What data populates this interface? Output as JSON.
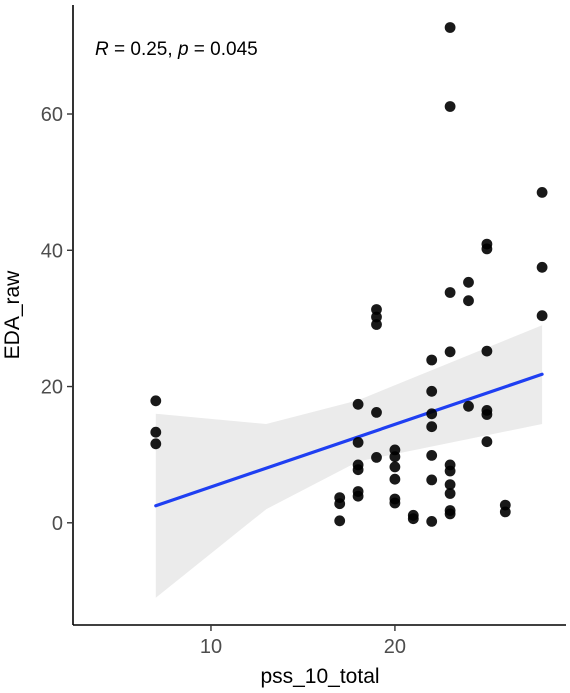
{
  "chart_data": {
    "type": "scatter",
    "xlabel": "pss_10_total",
    "ylabel": "EDA_raw",
    "annotation": {
      "r_symbol": "R",
      "r_text": " = 0.25, ",
      "p_symbol": "p",
      "p_text": " = 0.045"
    },
    "xlim": [
      2.5,
      29.3
    ],
    "ylim": [
      -15,
      76
    ],
    "x_ticks": [
      10,
      20
    ],
    "x_tick_labels": [
      "10",
      "20"
    ],
    "y_ticks": [
      0,
      20,
      40,
      60
    ],
    "y_tick_labels": [
      "0",
      "20",
      "40",
      "60"
    ],
    "grid": false,
    "legend": "none",
    "points": [
      {
        "x": 7,
        "y": 17.9
      },
      {
        "x": 7,
        "y": 13.3
      },
      {
        "x": 7,
        "y": 11.6
      },
      {
        "x": 17,
        "y": 3.7
      },
      {
        "x": 17,
        "y": 2.8
      },
      {
        "x": 17,
        "y": 0.3
      },
      {
        "x": 18,
        "y": 17.4
      },
      {
        "x": 18,
        "y": 11.8
      },
      {
        "x": 18,
        "y": 8.5
      },
      {
        "x": 18,
        "y": 7.8
      },
      {
        "x": 18,
        "y": 4.6
      },
      {
        "x": 18,
        "y": 3.9
      },
      {
        "x": 19,
        "y": 31.3
      },
      {
        "x": 19,
        "y": 30.2
      },
      {
        "x": 19,
        "y": 29.1
      },
      {
        "x": 19,
        "y": 16.2
      },
      {
        "x": 19,
        "y": 9.6
      },
      {
        "x": 20,
        "y": 10.7
      },
      {
        "x": 20,
        "y": 9.7
      },
      {
        "x": 20,
        "y": 8.2
      },
      {
        "x": 20,
        "y": 6.4
      },
      {
        "x": 20,
        "y": 3.5
      },
      {
        "x": 20,
        "y": 2.9
      },
      {
        "x": 21,
        "y": 1.1
      },
      {
        "x": 21,
        "y": 0.6
      },
      {
        "x": 22,
        "y": 23.9
      },
      {
        "x": 22,
        "y": 19.3
      },
      {
        "x": 22,
        "y": 16.0
      },
      {
        "x": 22,
        "y": 14.1
      },
      {
        "x": 22,
        "y": 9.9
      },
      {
        "x": 22,
        "y": 6.3
      },
      {
        "x": 22,
        "y": 0.2
      },
      {
        "x": 23,
        "y": 72.7
      },
      {
        "x": 23,
        "y": 61.1
      },
      {
        "x": 23,
        "y": 33.8
      },
      {
        "x": 23,
        "y": 25.1
      },
      {
        "x": 23,
        "y": 8.5
      },
      {
        "x": 23,
        "y": 7.6
      },
      {
        "x": 23,
        "y": 5.6
      },
      {
        "x": 23,
        "y": 4.3
      },
      {
        "x": 23,
        "y": 1.8
      },
      {
        "x": 23,
        "y": 1.3
      },
      {
        "x": 24,
        "y": 35.3
      },
      {
        "x": 24,
        "y": 32.6
      },
      {
        "x": 24,
        "y": 17.1
      },
      {
        "x": 25,
        "y": 40.9
      },
      {
        "x": 25,
        "y": 40.2
      },
      {
        "x": 25,
        "y": 25.2
      },
      {
        "x": 25,
        "y": 16.5
      },
      {
        "x": 25,
        "y": 15.9
      },
      {
        "x": 25,
        "y": 11.9
      },
      {
        "x": 26,
        "y": 2.6
      },
      {
        "x": 26,
        "y": 1.6
      },
      {
        "x": 28,
        "y": 48.5
      },
      {
        "x": 28,
        "y": 37.5
      },
      {
        "x": 28,
        "y": 30.4
      }
    ],
    "regression_line": {
      "x": [
        7,
        28
      ],
      "y": [
        2.5,
        21.8
      ],
      "color": "#1f3ff2"
    },
    "confidence_band": {
      "x": [
        7,
        13,
        18,
        28
      ],
      "lower": [
        -11,
        2,
        9,
        14.5
      ],
      "upper": [
        16,
        14.5,
        18,
        29
      ],
      "color": "#ebebeb"
    },
    "point_color": "#000000"
  }
}
